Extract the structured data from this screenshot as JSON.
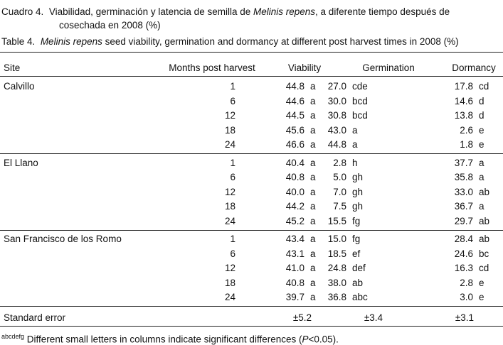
{
  "caption_es": {
    "label": "Cuadro 4.",
    "text_before": "Viabilidad, germinación y latencia de semilla de",
    "species": "Melinis repens",
    "text_after": ", a diferente tiempo después de",
    "text_line2": "cosechada en 2008 (%)"
  },
  "caption_en": {
    "label": "Table 4.",
    "species": "Melinis repens",
    "text_after": "seed viability, germination and dormancy at different post harvest times in 2008 (%)"
  },
  "table": {
    "header": [
      "Site",
      "Months post harvest",
      "Viability",
      "Germination",
      "Dormancy"
    ],
    "groups": [
      {
        "site": "Calvillo",
        "rows": [
          [
            "1",
            "44.8",
            "a",
            "27.0",
            "cde",
            "17.8",
            "cd"
          ],
          [
            "6",
            "44.6",
            "a",
            "30.0",
            "bcd",
            "14.6",
            "d"
          ],
          [
            "12",
            "44.5",
            "a",
            "30.8",
            "bcd",
            "13.8",
            "d"
          ],
          [
            "18",
            "45.6",
            "a",
            "43.0",
            "a",
            "2.6",
            "e"
          ],
          [
            "24",
            "46.6",
            "a",
            "44.8",
            "a",
            "1.8",
            "e"
          ]
        ]
      },
      {
        "site": "El Llano",
        "rows": [
          [
            "1",
            "40.4",
            "a",
            "2.8",
            "h",
            "37.7",
            "a"
          ],
          [
            "6",
            "40.8",
            "a",
            "5.0",
            "gh",
            "35.8",
            "a"
          ],
          [
            "12",
            "40.0",
            "a",
            "7.0",
            "gh",
            "33.0",
            "ab"
          ],
          [
            "18",
            "44.2",
            "a",
            "7.5",
            "gh",
            "36.7",
            "a"
          ],
          [
            "24",
            "45.2",
            "a",
            "15.5",
            "fg",
            "29.7",
            "ab"
          ]
        ]
      },
      {
        "site": "San Francisco de los Romo",
        "rows": [
          [
            "1",
            "43.4",
            "a",
            "15.0",
            "fg",
            "28.4",
            "ab"
          ],
          [
            "6",
            "43.1",
            "a",
            "18.5",
            "ef",
            "24.6",
            "bc"
          ],
          [
            "12",
            "41.0",
            "a",
            "24.8",
            "def",
            "16.3",
            "cd"
          ],
          [
            "18",
            "40.8",
            "a",
            "38.0",
            "ab",
            "2.8",
            "e"
          ],
          [
            "24",
            "39.7",
            "a",
            "36.8",
            "abc",
            "3.0",
            "e"
          ]
        ]
      }
    ],
    "standard_error": {
      "label": "Standard error",
      "values": [
        "±5.2",
        "±3.4",
        "±3.1"
      ]
    }
  },
  "footnote": {
    "superscript": "abcdefg",
    "text_before": "Different small letters in columns indicate significant differences (",
    "p": "P",
    "text_after": "<0.05)."
  }
}
